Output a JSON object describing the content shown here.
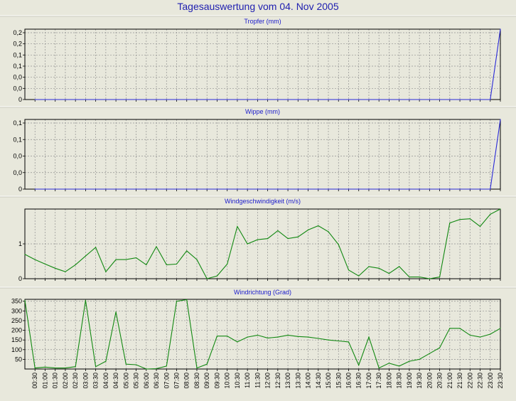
{
  "title": "Tagesauswertung vom 04. Nov 2005",
  "colors": {
    "background": "#e8e8dc",
    "title": "#2020b0",
    "blue_series": "#2a2ad8",
    "green_series": "#118811",
    "grid": "#909090"
  },
  "x_ticks": [
    "00:30",
    "01:00",
    "01:30",
    "02:00",
    "02:30",
    "03:00",
    "03:30",
    "04:00",
    "04:30",
    "05:00",
    "05:30",
    "06:00",
    "06:30",
    "07:00",
    "07:30",
    "08:00",
    "08:30",
    "09:00",
    "09:30",
    "10:00",
    "10:30",
    "11:00",
    "11:30",
    "12:00",
    "12:30",
    "13:00",
    "13:30",
    "14:00",
    "14:30",
    "15:00",
    "15:30",
    "16:00",
    "16:30",
    "17:00",
    "17:30",
    "18:00",
    "18:30",
    "19:00",
    "19:30",
    "20:00",
    "20:30",
    "21:00",
    "21:30",
    "22:00",
    "22:30",
    "23:00",
    "23:30"
  ],
  "chart_data": [
    {
      "type": "line",
      "title": "Tropfer (mm)",
      "ylim": [
        0,
        0.2
      ],
      "y_tick_labels": [
        "0,2",
        "0,2",
        "0,1",
        "0,1",
        "0,0",
        "0,0",
        "0"
      ],
      "grid": true,
      "series": [
        {
          "color": "#2a2ad8",
          "x": [
            "00:30",
            "01:00",
            "01:30",
            "02:00",
            "02:30",
            "03:00",
            "03:30",
            "04:00",
            "04:30",
            "05:00",
            "05:30",
            "06:00",
            "06:30",
            "07:00",
            "07:30",
            "08:00",
            "08:30",
            "09:00",
            "09:30",
            "10:00",
            "10:30",
            "11:00",
            "11:30",
            "12:00",
            "12:30",
            "13:00",
            "13:30",
            "14:00",
            "14:30",
            "15:00",
            "15:30",
            "16:00",
            "16:30",
            "17:00",
            "17:30",
            "18:00",
            "18:30",
            "19:00",
            "19:30",
            "20:00",
            "20:30",
            "21:00",
            "21:30",
            "22:00",
            "22:30",
            "23:00",
            "23:30"
          ],
          "values": [
            0,
            0,
            0,
            0,
            0,
            0,
            0,
            0,
            0,
            0,
            0,
            0,
            0,
            0,
            0,
            0,
            0,
            0,
            0,
            0,
            0,
            0,
            0,
            0,
            0,
            0,
            0,
            0,
            0,
            0,
            0,
            0,
            0,
            0,
            0,
            0,
            0,
            0,
            0,
            0,
            0,
            0,
            0,
            0,
            0,
            0,
            0.2
          ]
        }
      ]
    },
    {
      "type": "line",
      "title": "Wippe (mm)",
      "ylim": [
        0,
        0.19
      ],
      "y_tick_labels": [
        "0,1",
        "0,1",
        "0,0",
        "0,0",
        "0"
      ],
      "grid": true,
      "series": [
        {
          "color": "#2a2ad8",
          "x": [
            "00:30",
            "01:00",
            "01:30",
            "02:00",
            "02:30",
            "03:00",
            "03:30",
            "04:00",
            "04:30",
            "05:00",
            "05:30",
            "06:00",
            "06:30",
            "07:00",
            "07:30",
            "08:00",
            "08:30",
            "09:00",
            "09:30",
            "10:00",
            "10:30",
            "11:00",
            "11:30",
            "12:00",
            "12:30",
            "13:00",
            "13:30",
            "14:00",
            "14:30",
            "15:00",
            "15:30",
            "16:00",
            "16:30",
            "17:00",
            "17:30",
            "18:00",
            "18:30",
            "19:00",
            "19:30",
            "20:00",
            "20:30",
            "21:00",
            "21:30",
            "22:00",
            "22:30",
            "23:00",
            "23:30"
          ],
          "values": [
            0,
            0,
            0,
            0,
            0,
            0,
            0,
            0,
            0,
            0,
            0,
            0,
            0,
            0,
            0,
            0,
            0,
            0,
            0,
            0,
            0,
            0,
            0,
            0,
            0,
            0,
            0,
            0,
            0,
            0,
            0,
            0,
            0,
            0,
            0,
            0,
            0,
            0,
            0,
            0,
            0,
            0,
            0,
            0,
            0,
            0,
            0.19
          ]
        }
      ]
    },
    {
      "type": "line",
      "title": "Windgeschwindigkeit (m/s)",
      "ylim": [
        0,
        2
      ],
      "y_tick_labels": [
        "1",
        "0"
      ],
      "grid": true,
      "series": [
        {
          "color": "#118811",
          "x": [
            "00:00",
            "00:30",
            "01:00",
            "01:30",
            "02:00",
            "02:30",
            "03:00",
            "03:30",
            "04:00",
            "04:30",
            "05:00",
            "05:30",
            "06:00",
            "06:30",
            "07:00",
            "07:30",
            "08:00",
            "08:30",
            "09:00",
            "09:30",
            "10:00",
            "10:30",
            "11:00",
            "11:30",
            "12:00",
            "12:30",
            "13:00",
            "13:30",
            "14:00",
            "14:30",
            "15:00",
            "15:30",
            "16:00",
            "16:30",
            "17:00",
            "17:30",
            "18:00",
            "18:30",
            "19:00",
            "19:30",
            "20:00",
            "20:30",
            "21:00",
            "21:30",
            "22:00",
            "22:30",
            "23:00",
            "23:30"
          ],
          "values": [
            0.7,
            0.55,
            0.42,
            0.3,
            0.2,
            0.4,
            0.65,
            0.9,
            0.2,
            0.55,
            0.55,
            0.6,
            0.4,
            0.92,
            0.4,
            0.42,
            0.8,
            0.55,
            0.0,
            0.08,
            0.42,
            1.5,
            1.0,
            1.12,
            1.15,
            1.38,
            1.15,
            1.2,
            1.4,
            1.52,
            1.35,
            0.98,
            0.25,
            0.08,
            0.35,
            0.3,
            0.15,
            0.35,
            0.05,
            0.05,
            0.0,
            0.05,
            1.6,
            1.7,
            1.72,
            1.5,
            1.85,
            2.0
          ]
        }
      ]
    },
    {
      "type": "line",
      "title": "Windrichtung (Grad)",
      "ylim": [
        0,
        360
      ],
      "y_tick_labels": [
        "350",
        "300",
        "250",
        "200",
        "150",
        "100",
        "50"
      ],
      "grid": true,
      "series": [
        {
          "color": "#118811",
          "x": [
            "00:00",
            "00:30",
            "01:00",
            "01:30",
            "02:00",
            "02:30",
            "03:00",
            "03:30",
            "04:00",
            "04:30",
            "05:00",
            "05:30",
            "06:00",
            "06:30",
            "07:00",
            "07:30",
            "08:00",
            "08:30",
            "09:00",
            "09:30",
            "10:00",
            "10:30",
            "11:00",
            "11:30",
            "12:00",
            "12:30",
            "13:00",
            "13:30",
            "14:00",
            "14:30",
            "15:00",
            "15:30",
            "16:00",
            "16:30",
            "17:00",
            "17:30",
            "18:00",
            "18:30",
            "19:00",
            "19:30",
            "20:00",
            "20:30",
            "21:00",
            "21:30",
            "22:00",
            "22:30",
            "23:00",
            "23:30"
          ],
          "values": [
            355,
            5,
            10,
            5,
            5,
            12,
            355,
            12,
            40,
            295,
            25,
            22,
            0,
            2,
            15,
            350,
            358,
            5,
            25,
            170,
            170,
            140,
            165,
            175,
            160,
            165,
            175,
            168,
            165,
            158,
            150,
            145,
            140,
            20,
            165,
            5,
            30,
            15,
            40,
            50,
            80,
            110,
            210,
            210,
            175,
            165,
            180,
            210
          ]
        }
      ]
    }
  ]
}
